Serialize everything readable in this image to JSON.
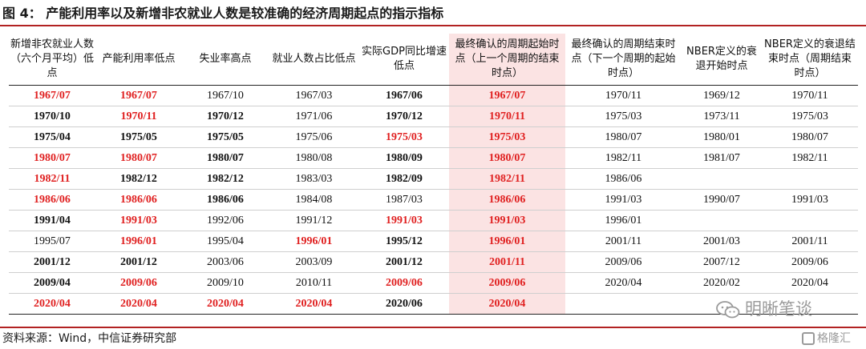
{
  "title": "图 4：    产能利用率以及新增非农就业人数是较准确的经济周期起点的指示指标",
  "source": "资料来源：Wind，中信证券研究部",
  "watermarks": {
    "wechat": "明晰笔谈",
    "gelonghui": "格隆汇"
  },
  "colors": {
    "accent_red": "#e02020",
    "rule": "#b22222",
    "shade": "#fbe3e3"
  },
  "table": {
    "columns": [
      "新增非农就业人数（六个月平均）低点",
      "产能利用率低点",
      "失业率高点",
      "就业人数占比低点",
      "实际GDP同比增速低点",
      "最终确认的周期起始时点（上一个周期的结束时点）",
      "最终确认的周期结束时点（下一个周期的起始时点）",
      "NBER定义的衰退开始时点",
      "NBER定义的衰退结束时点（周期结束时点）"
    ],
    "rows": [
      [
        [
          "1967/07",
          "r"
        ],
        [
          "1967/07",
          "r"
        ],
        [
          "1967/10",
          "n"
        ],
        [
          "1967/03",
          "n"
        ],
        [
          "1967/06",
          "b"
        ],
        [
          "1967/07",
          "r"
        ],
        [
          "1970/11",
          "n"
        ],
        [
          "1969/12",
          "n"
        ],
        [
          "1970/11",
          "n"
        ]
      ],
      [
        [
          "1970/10",
          "b"
        ],
        [
          "1970/11",
          "r"
        ],
        [
          "1970/12",
          "b"
        ],
        [
          "1971/06",
          "n"
        ],
        [
          "1970/12",
          "b"
        ],
        [
          "1970/11",
          "r"
        ],
        [
          "1975/03",
          "n"
        ],
        [
          "1973/11",
          "n"
        ],
        [
          "1975/03",
          "n"
        ]
      ],
      [
        [
          "1975/04",
          "b"
        ],
        [
          "1975/05",
          "b"
        ],
        [
          "1975/05",
          "b"
        ],
        [
          "1975/06",
          "n"
        ],
        [
          "1975/03",
          "r"
        ],
        [
          "1975/03",
          "r"
        ],
        [
          "1980/07",
          "n"
        ],
        [
          "1980/01",
          "n"
        ],
        [
          "1980/07",
          "n"
        ]
      ],
      [
        [
          "1980/07",
          "r"
        ],
        [
          "1980/07",
          "r"
        ],
        [
          "1980/07",
          "b"
        ],
        [
          "1980/08",
          "n"
        ],
        [
          "1980/09",
          "b"
        ],
        [
          "1980/07",
          "r"
        ],
        [
          "1982/11",
          "n"
        ],
        [
          "1981/07",
          "n"
        ],
        [
          "1982/11",
          "n"
        ]
      ],
      [
        [
          "1982/11",
          "r"
        ],
        [
          "1982/12",
          "b"
        ],
        [
          "1982/12",
          "b"
        ],
        [
          "1983/03",
          "n"
        ],
        [
          "1982/09",
          "b"
        ],
        [
          "1982/11",
          "r"
        ],
        [
          "1986/06",
          "n"
        ],
        [
          "",
          ""
        ],
        [
          "",
          ""
        ]
      ],
      [
        [
          "1986/06",
          "r"
        ],
        [
          "1986/06",
          "r"
        ],
        [
          "1986/06",
          "b"
        ],
        [
          "1984/08",
          "n"
        ],
        [
          "1987/03",
          "n"
        ],
        [
          "1986/06",
          "r"
        ],
        [
          "1991/03",
          "n"
        ],
        [
          "1990/07",
          "n"
        ],
        [
          "1991/03",
          "n"
        ]
      ],
      [
        [
          "1991/04",
          "b"
        ],
        [
          "1991/03",
          "r"
        ],
        [
          "1992/06",
          "n"
        ],
        [
          "1991/12",
          "n"
        ],
        [
          "1991/03",
          "r"
        ],
        [
          "1991/03",
          "r"
        ],
        [
          "1996/01",
          "n"
        ],
        [
          "",
          ""
        ],
        [
          "",
          ""
        ]
      ],
      [
        [
          "1995/07",
          "n"
        ],
        [
          "1996/01",
          "r"
        ],
        [
          "1995/04",
          "n"
        ],
        [
          "1996/01",
          "r"
        ],
        [
          "1995/12",
          "b"
        ],
        [
          "1996/01",
          "r"
        ],
        [
          "2001/11",
          "n"
        ],
        [
          "2001/03",
          "n"
        ],
        [
          "2001/11",
          "n"
        ]
      ],
      [
        [
          "2001/12",
          "b"
        ],
        [
          "2001/12",
          "b"
        ],
        [
          "2003/06",
          "n"
        ],
        [
          "2003/09",
          "n"
        ],
        [
          "2001/12",
          "b"
        ],
        [
          "2001/11",
          "r"
        ],
        [
          "2009/06",
          "n"
        ],
        [
          "2007/12",
          "n"
        ],
        [
          "2009/06",
          "n"
        ]
      ],
      [
        [
          "2009/04",
          "b"
        ],
        [
          "2009/06",
          "r"
        ],
        [
          "2009/10",
          "n"
        ],
        [
          "2010/11",
          "n"
        ],
        [
          "2009/06",
          "r"
        ],
        [
          "2009/06",
          "r"
        ],
        [
          "2020/04",
          "n"
        ],
        [
          "2020/02",
          "n"
        ],
        [
          "2020/04",
          "n"
        ]
      ],
      [
        [
          "2020/04",
          "r"
        ],
        [
          "2020/04",
          "r"
        ],
        [
          "2020/04",
          "r"
        ],
        [
          "2020/04",
          "r"
        ],
        [
          "2020/06",
          "b"
        ],
        [
          "2020/04",
          "r"
        ],
        [
          "",
          ""
        ],
        [
          "",
          ""
        ],
        [
          "",
          ""
        ]
      ]
    ]
  }
}
